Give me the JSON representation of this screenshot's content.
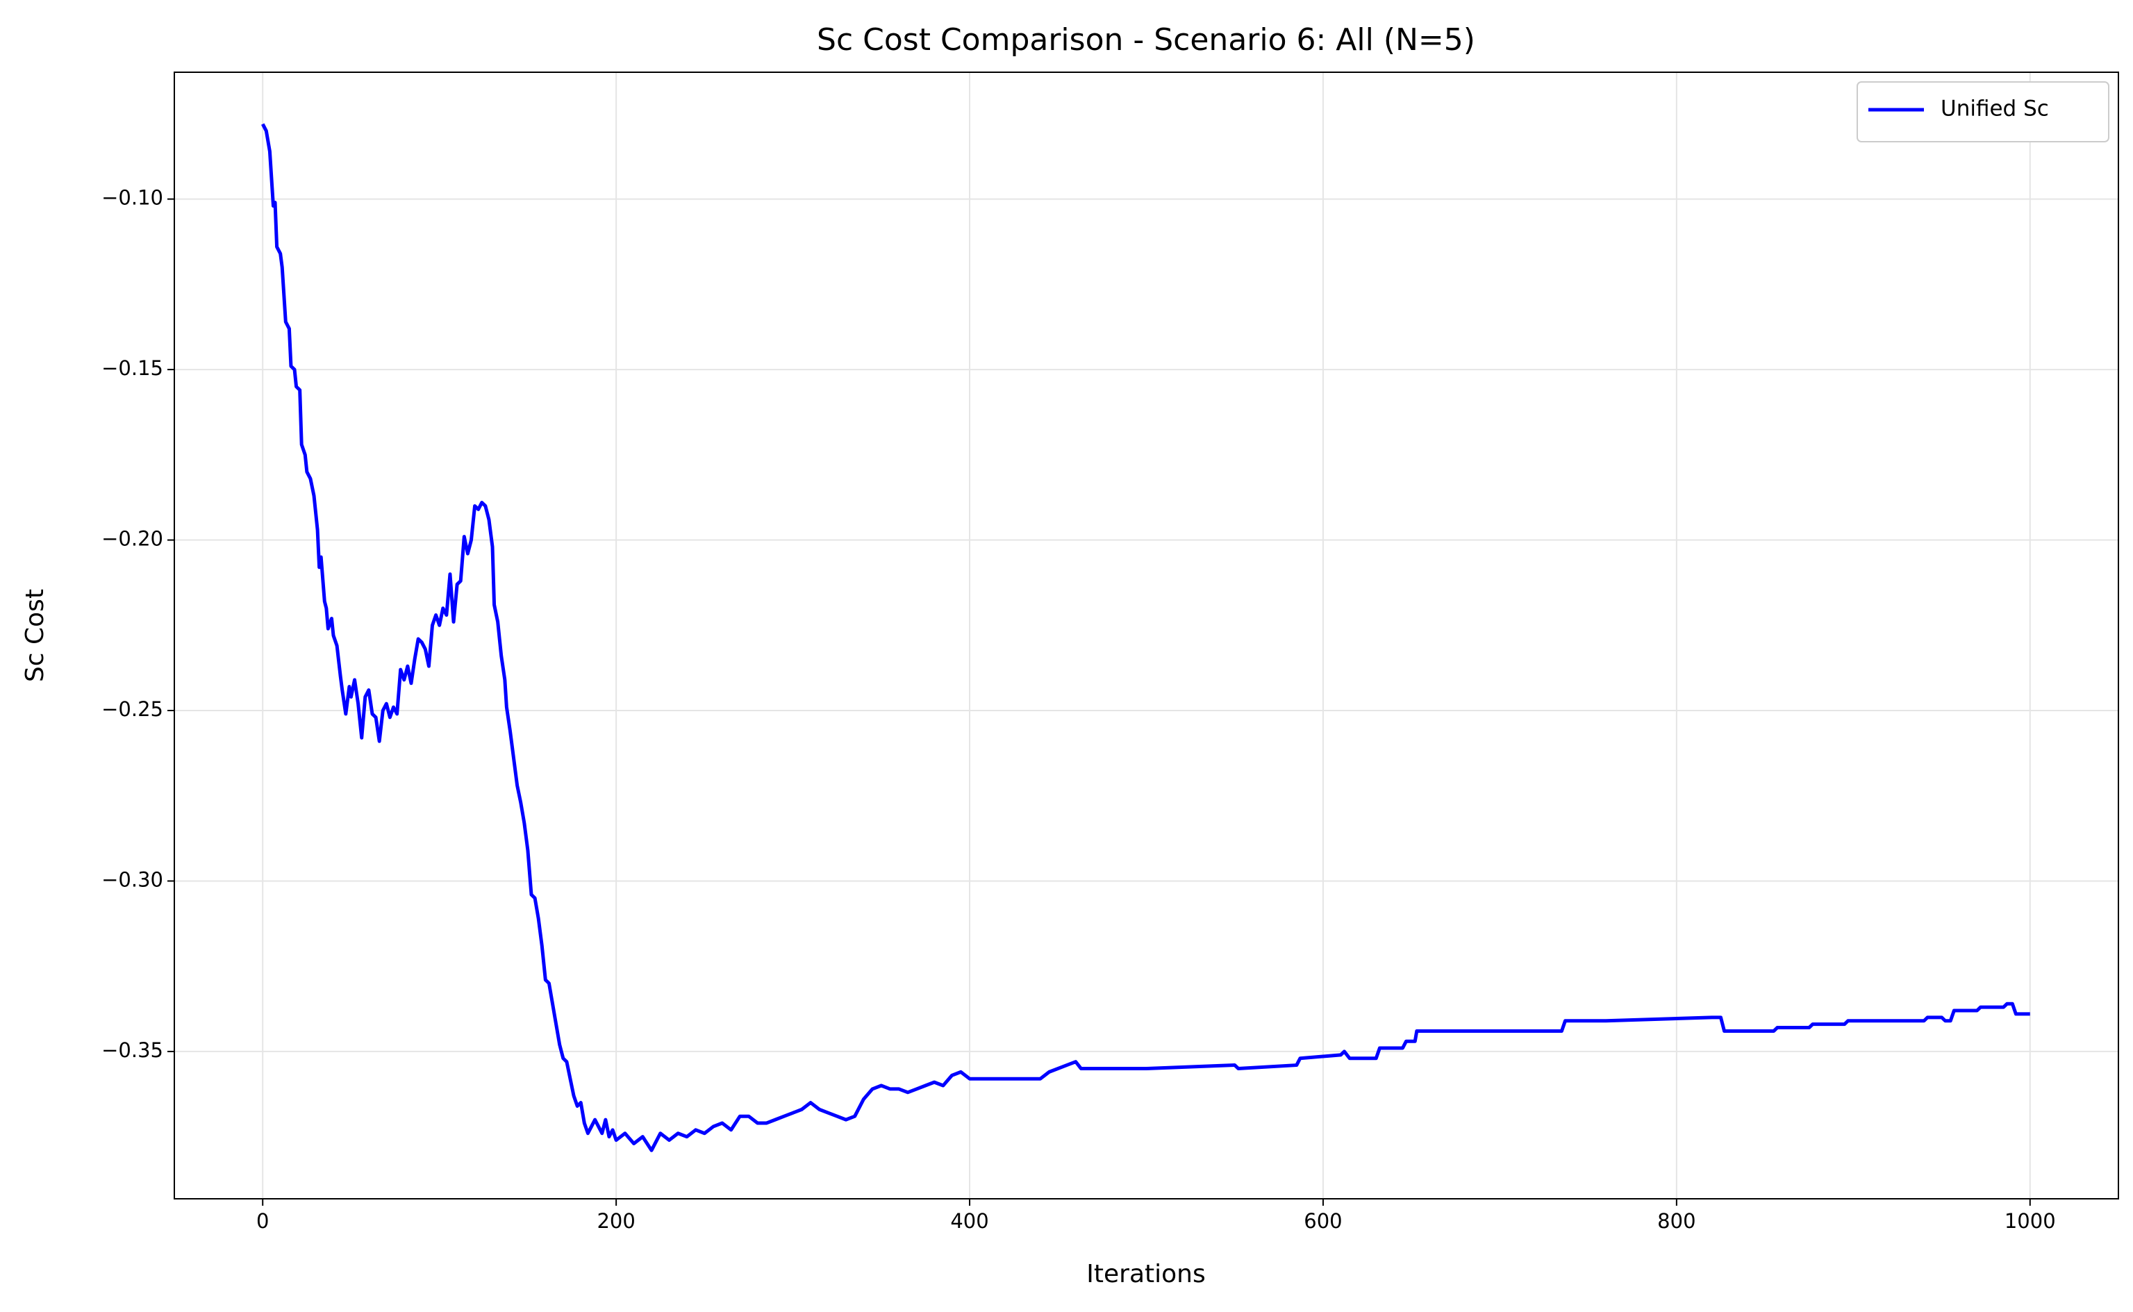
{
  "chart_data": {
    "type": "line",
    "title": "Sc Cost Comparison - Scenario 6: All (N=5)",
    "x_label": "Iterations",
    "y_label": "Sc Cost",
    "xlim": [
      -50,
      1050
    ],
    "ylim": [
      -0.3932,
      -0.0628
    ],
    "xticks": [
      0,
      200,
      400,
      600,
      800,
      1000
    ],
    "yticks": [
      {
        "value": -0.35,
        "label": "−0.35"
      },
      {
        "value": -0.3,
        "label": "−0.30"
      },
      {
        "value": -0.25,
        "label": "−0.25"
      },
      {
        "value": -0.2,
        "label": "−0.20"
      },
      {
        "value": -0.15,
        "label": "−0.15"
      },
      {
        "value": -0.1,
        "label": "−0.10"
      }
    ],
    "grid": true,
    "legend": "upper right",
    "x": [
      0,
      2,
      4,
      6,
      7,
      8,
      10,
      11,
      13,
      15,
      16,
      18,
      19,
      21,
      22,
      24,
      25,
      27,
      29,
      31,
      32,
      33,
      35,
      36,
      37,
      39,
      40,
      42,
      44,
      45,
      47,
      49,
      50,
      52,
      54,
      56,
      58,
      60,
      62,
      64,
      66,
      68,
      70,
      72,
      74,
      76,
      78,
      80,
      82,
      84,
      86,
      88,
      90,
      92,
      94,
      96,
      98,
      100,
      102,
      104,
      106,
      108,
      110,
      112,
      114,
      116,
      118,
      120,
      122,
      124,
      126,
      128,
      130,
      131,
      133,
      135,
      137,
      138,
      140,
      142,
      144,
      146,
      148,
      150,
      152,
      154,
      156,
      158,
      160,
      162,
      164,
      166,
      168,
      170,
      172,
      174,
      176,
      178,
      180,
      182,
      184,
      186,
      188,
      190,
      192,
      194,
      196,
      198,
      200,
      205,
      210,
      215,
      220,
      225,
      230,
      235,
      240,
      245,
      250,
      255,
      260,
      265,
      270,
      275,
      280,
      285,
      290,
      295,
      300,
      305,
      310,
      315,
      320,
      325,
      330,
      335,
      340,
      345,
      350,
      355,
      360,
      365,
      370,
      375,
      380,
      385,
      390,
      395,
      400,
      420,
      440,
      445,
      455,
      460,
      463,
      500,
      550,
      552,
      585,
      587,
      610,
      612,
      615,
      630,
      632,
      645,
      647,
      652,
      653,
      680,
      682,
      735,
      737,
      760,
      820,
      825,
      827,
      855,
      857,
      875,
      877,
      895,
      897,
      940,
      942,
      950,
      952,
      955,
      957,
      970,
      972,
      985,
      987,
      990,
      992,
      1000
    ],
    "series": [
      {
        "name": "Unified Sc",
        "color": "#0000ff",
        "values": [
          -0.078,
          -0.08,
          -0.086,
          -0.102,
          -0.101,
          -0.114,
          -0.116,
          -0.12,
          -0.136,
          -0.138,
          -0.149,
          -0.15,
          -0.155,
          -0.156,
          -0.172,
          -0.175,
          -0.18,
          -0.182,
          -0.187,
          -0.197,
          -0.208,
          -0.205,
          -0.218,
          -0.22,
          -0.226,
          -0.223,
          -0.228,
          -0.231,
          -0.24,
          -0.244,
          -0.251,
          -0.243,
          -0.246,
          -0.241,
          -0.248,
          -0.258,
          -0.246,
          -0.244,
          -0.251,
          -0.252,
          -0.259,
          -0.25,
          -0.248,
          -0.252,
          -0.249,
          -0.251,
          -0.238,
          -0.241,
          -0.237,
          -0.242,
          -0.235,
          -0.229,
          -0.23,
          -0.232,
          -0.237,
          -0.225,
          -0.222,
          -0.225,
          -0.22,
          -0.222,
          -0.21,
          -0.224,
          -0.213,
          -0.212,
          -0.199,
          -0.204,
          -0.2,
          -0.19,
          -0.191,
          -0.189,
          -0.19,
          -0.194,
          -0.202,
          -0.219,
          -0.224,
          -0.234,
          -0.241,
          -0.249,
          -0.256,
          -0.264,
          -0.272,
          -0.277,
          -0.283,
          -0.291,
          -0.304,
          -0.305,
          -0.311,
          -0.319,
          -0.329,
          -0.33,
          -0.336,
          -0.342,
          -0.348,
          -0.352,
          -0.353,
          -0.358,
          -0.363,
          -0.366,
          -0.365,
          -0.371,
          -0.374,
          -0.372,
          -0.37,
          -0.372,
          -0.374,
          -0.37,
          -0.375,
          -0.373,
          -0.376,
          -0.374,
          -0.377,
          -0.375,
          -0.379,
          -0.374,
          -0.376,
          -0.374,
          -0.375,
          -0.373,
          -0.374,
          -0.372,
          -0.371,
          -0.373,
          -0.369,
          -0.369,
          -0.371,
          -0.371,
          -0.37,
          -0.369,
          -0.368,
          -0.367,
          -0.365,
          -0.367,
          -0.368,
          -0.369,
          -0.37,
          -0.369,
          -0.364,
          -0.361,
          -0.36,
          -0.361,
          -0.361,
          -0.362,
          -0.361,
          -0.36,
          -0.359,
          -0.36,
          -0.357,
          -0.356,
          -0.358,
          -0.358,
          -0.358,
          -0.356,
          -0.354,
          -0.353,
          -0.355,
          -0.355,
          -0.354,
          -0.355,
          -0.354,
          -0.352,
          -0.351,
          -0.35,
          -0.352,
          -0.352,
          -0.349,
          -0.349,
          -0.347,
          -0.347,
          -0.344,
          -0.344,
          -0.344,
          -0.344,
          -0.341,
          -0.341,
          -0.34,
          -0.34,
          -0.344,
          -0.344,
          -0.343,
          -0.343,
          -0.342,
          -0.342,
          -0.341,
          -0.341,
          -0.34,
          -0.34,
          -0.341,
          -0.341,
          -0.338,
          -0.338,
          -0.337,
          -0.337,
          -0.336,
          -0.336,
          -0.339,
          -0.339
        ]
      }
    ]
  }
}
